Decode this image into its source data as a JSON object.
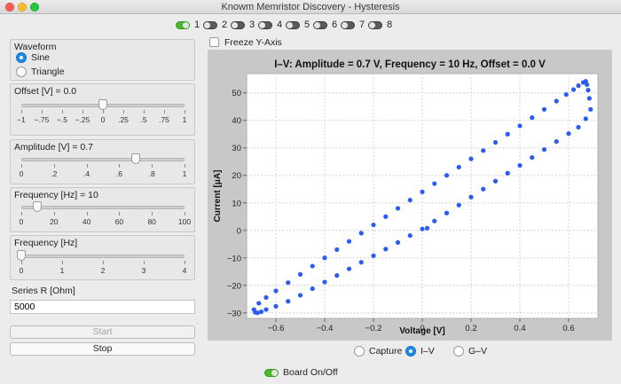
{
  "window": {
    "title": "Knowm Memristor Discovery - Hysteresis"
  },
  "switches": [
    {
      "label": "1",
      "on": true
    },
    {
      "label": "2",
      "on": false
    },
    {
      "label": "3",
      "on": false
    },
    {
      "label": "4",
      "on": false
    },
    {
      "label": "5",
      "on": false
    },
    {
      "label": "6",
      "on": false
    },
    {
      "label": "7",
      "on": false
    },
    {
      "label": "8",
      "on": false
    }
  ],
  "waveform": {
    "label": "Waveform",
    "options": [
      "Sine",
      "Triangle"
    ],
    "selected": "Sine"
  },
  "offset": {
    "label": "Offset [V] = 0.0",
    "value": 0.0,
    "min": -1,
    "max": 1,
    "tick_labels": [
      "−1",
      "−.75",
      "−.5",
      "−.25",
      "0",
      ".25",
      ".5",
      ".75",
      "1"
    ]
  },
  "amplitude": {
    "label": "Amplitude [V] = 0.7",
    "value": 0.7,
    "min": 0,
    "max": 1,
    "tick_labels": [
      "0",
      ".2",
      ".4",
      ".6",
      ".8",
      "1"
    ]
  },
  "frequency": {
    "label": "Frequency [Hz] = 10",
    "value": 10,
    "min": 0,
    "max": 100,
    "tick_labels": [
      "0",
      "20",
      "40",
      "60",
      "80",
      "100"
    ]
  },
  "frequency2": {
    "label": "Frequency [Hz]",
    "value": 0,
    "min": 0,
    "max": 4,
    "tick_labels": [
      "0",
      "1",
      "2",
      "3",
      "4"
    ]
  },
  "series_r": {
    "label": "Series R [Ohm]",
    "value": "5000"
  },
  "buttons": {
    "start": "Start",
    "stop": "Stop"
  },
  "freeze": {
    "label": "Freeze Y-Axis",
    "checked": false
  },
  "modes": {
    "options": [
      "Capture",
      "I–V",
      "G–V"
    ],
    "selected": "I–V"
  },
  "board": {
    "label": "Board On/Off",
    "on": true
  },
  "chart_data": {
    "type": "scatter",
    "title": "I–V: Amplitude = 0.7 V, Frequency = 10 Hz, Offset = 0.0 V",
    "xlabel": "Voltage [V]",
    "ylabel": "Current [μA]",
    "xlim": [
      -0.72,
      0.72
    ],
    "ylim": [
      -32,
      57
    ],
    "xticks": [
      -0.6,
      -0.4,
      -0.2,
      0,
      0.2,
      0.4,
      0.6
    ],
    "xtick_labels": [
      "−0.6",
      "−0.4",
      "−0.2",
      "0",
      "0.2",
      "0.4",
      "0.6"
    ],
    "yticks": [
      -30,
      -20,
      -10,
      0,
      10,
      20,
      30,
      40,
      50
    ],
    "ytick_labels": [
      "−30",
      "−20",
      "−10",
      "0",
      "10",
      "20",
      "30",
      "40",
      "50"
    ],
    "grid": true,
    "point_color": "#2a5cf5",
    "series": [
      {
        "points": [
          [
            0.0,
            0.5
          ],
          [
            0.05,
            3.4
          ],
          [
            0.1,
            6.3
          ],
          [
            0.15,
            9.2
          ],
          [
            0.2,
            12.1
          ],
          [
            0.25,
            15.0
          ],
          [
            0.3,
            17.9
          ],
          [
            0.35,
            20.8
          ],
          [
            0.4,
            23.6
          ],
          [
            0.45,
            26.5
          ],
          [
            0.5,
            29.4
          ],
          [
            0.55,
            32.3
          ],
          [
            0.6,
            35.2
          ],
          [
            0.64,
            37.5
          ],
          [
            0.67,
            40.6
          ],
          [
            0.69,
            44.0
          ],
          [
            0.685,
            48.0
          ],
          [
            0.68,
            51.0
          ],
          [
            0.675,
            53.0
          ],
          [
            0.67,
            54.2
          ],
          [
            0.66,
            53.8
          ],
          [
            0.64,
            52.6
          ],
          [
            0.62,
            51.2
          ],
          [
            0.59,
            49.4
          ],
          [
            0.55,
            47.0
          ],
          [
            0.5,
            44.0
          ],
          [
            0.45,
            41.0
          ],
          [
            0.4,
            38.0
          ],
          [
            0.35,
            35.0
          ],
          [
            0.3,
            32.0
          ],
          [
            0.25,
            29.0
          ],
          [
            0.2,
            26.0
          ],
          [
            0.15,
            23.0
          ],
          [
            0.1,
            20.0
          ],
          [
            0.05,
            17.0
          ],
          [
            0.0,
            14.0
          ],
          [
            -0.05,
            11.0
          ],
          [
            -0.1,
            8.0
          ],
          [
            -0.15,
            5.0
          ],
          [
            -0.2,
            2.0
          ],
          [
            -0.25,
            -1.0
          ],
          [
            -0.3,
            -4.0
          ],
          [
            -0.35,
            -7.0
          ],
          [
            -0.4,
            -10.0
          ],
          [
            -0.45,
            -13.0
          ],
          [
            -0.5,
            -16.0
          ],
          [
            -0.55,
            -19.0
          ],
          [
            -0.6,
            -22.0
          ],
          [
            -0.64,
            -24.4
          ],
          [
            -0.67,
            -26.5
          ],
          [
            -0.69,
            -28.8
          ],
          [
            -0.685,
            -29.8
          ],
          [
            -0.675,
            -30.0
          ],
          [
            -0.66,
            -29.6
          ],
          [
            -0.64,
            -28.8
          ],
          [
            -0.6,
            -27.6
          ],
          [
            -0.55,
            -25.8
          ],
          [
            -0.5,
            -23.6
          ],
          [
            -0.45,
            -21.2
          ],
          [
            -0.4,
            -18.8
          ],
          [
            -0.35,
            -16.4
          ],
          [
            -0.3,
            -14.0
          ],
          [
            -0.25,
            -11.6
          ],
          [
            -0.2,
            -9.2
          ],
          [
            -0.15,
            -6.8
          ],
          [
            -0.1,
            -4.4
          ],
          [
            -0.05,
            -1.9
          ],
          [
            0.02,
            0.8
          ]
        ]
      }
    ]
  }
}
